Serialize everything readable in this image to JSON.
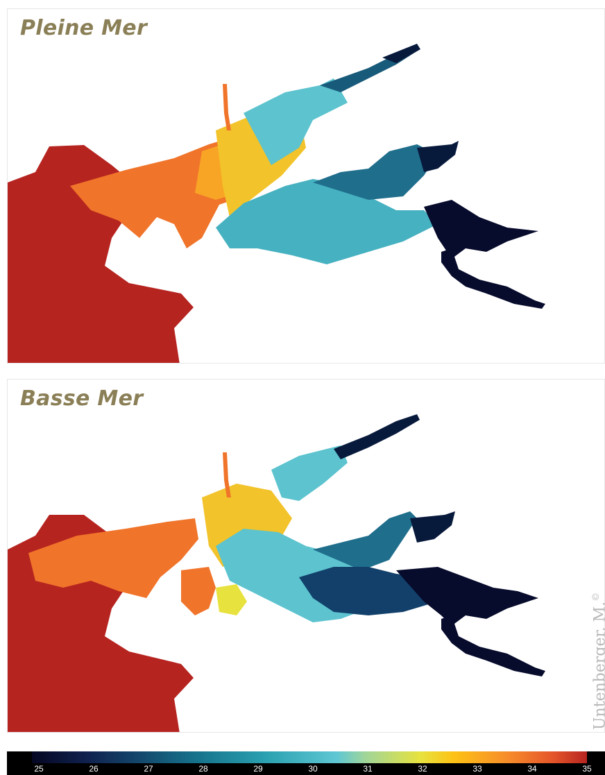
{
  "panels": [
    {
      "title": "Pleine Mer"
    },
    {
      "title": "Basse Mer"
    }
  ],
  "credit": {
    "name": "Untenberger, M.",
    "mark": "©"
  },
  "colorbar": {
    "ticks": [
      "25",
      "26",
      "27",
      "28",
      "29",
      "30",
      "31",
      "32",
      "33",
      "34",
      "35"
    ],
    "range": [
      25,
      35
    ],
    "colors": {
      "low": "#050622",
      "mid": "#5fc7d3",
      "high": "#b62420"
    }
  }
}
